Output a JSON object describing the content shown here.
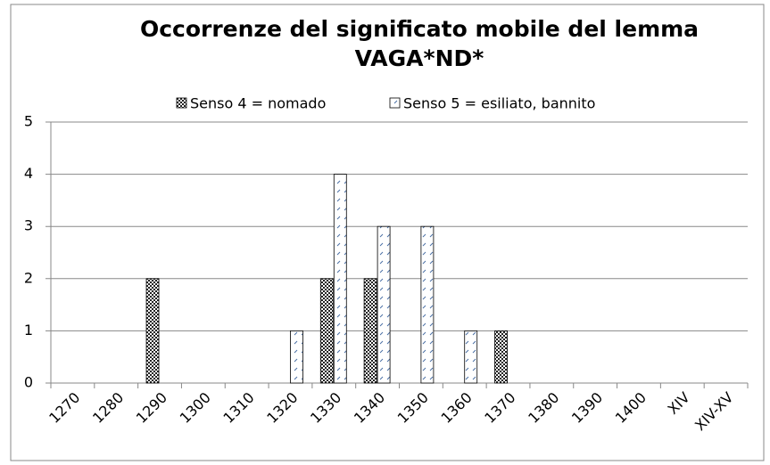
{
  "chart_data": {
    "type": "bar",
    "title": "Occorrenze del significato mobile del lemma VAGA*ND*",
    "categories": [
      "1270",
      "1280",
      "1290",
      "1300",
      "1310",
      "1320",
      "1330",
      "1340",
      "1350",
      "1360",
      "1370",
      "1380",
      "1390",
      "1400",
      "XIV",
      "XIV-XV"
    ],
    "series": [
      {
        "name": "Senso 4 = nomado",
        "color": "#333333",
        "values": [
          0,
          0,
          2,
          0,
          0,
          0,
          2,
          2,
          0,
          0,
          1,
          0,
          0,
          0,
          0,
          0
        ]
      },
      {
        "name": "Senso 5 = esiliato, bannito",
        "color": "#ffffff",
        "values": [
          0,
          0,
          0,
          0,
          0,
          1,
          4,
          3,
          3,
          1,
          0,
          0,
          0,
          0,
          0,
          0
        ]
      }
    ],
    "ylim": [
      0,
      5
    ],
    "yticks": [
      0,
      1,
      2,
      3,
      4,
      5
    ],
    "grid": true,
    "legend": "top"
  }
}
